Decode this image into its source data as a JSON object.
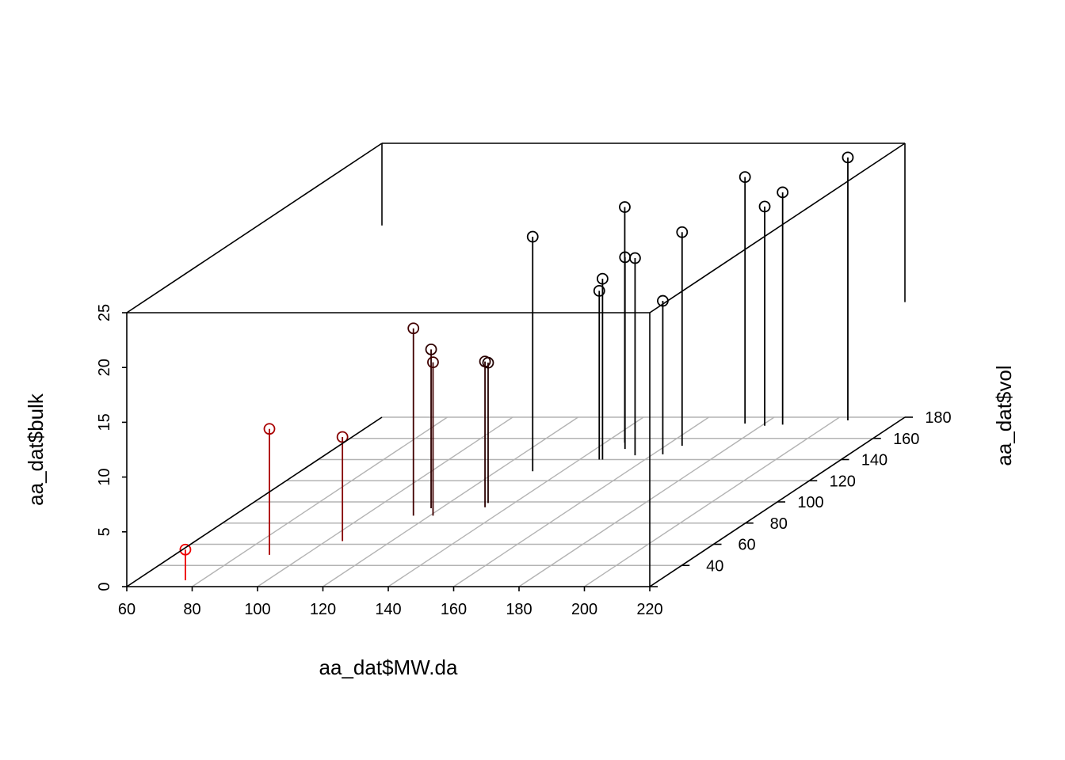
{
  "chart_data": {
    "type": "scatter3d",
    "title": "",
    "xlabel": "aa_dat$MW.da",
    "ylabel": "aa_dat$vol",
    "zlabel": "aa_dat$bulk",
    "xlim": [
      60,
      220
    ],
    "ylim": [
      20,
      180
    ],
    "zlim": [
      0,
      25
    ],
    "x_ticks": [
      "60",
      "80",
      "100",
      "120",
      "140",
      "160",
      "180",
      "200",
      "220"
    ],
    "y_ticks": [
      "40",
      "60",
      "80",
      "100",
      "120",
      "140",
      "160",
      "180"
    ],
    "z_ticks": [
      "0",
      "5",
      "10",
      "15",
      "20",
      "25"
    ],
    "grid": true,
    "point_type": "h",
    "color_high": "#ff0000",
    "color_low": "#000000",
    "points": [
      {
        "x": 75.0,
        "y": 26,
        "z": 2.8
      },
      {
        "x": 89.0,
        "y": 50,
        "z": 11.5
      },
      {
        "x": 105.0,
        "y": 63,
        "z": 9.5
      },
      {
        "x": 115.0,
        "y": 87,
        "z": 17.1
      },
      {
        "x": 117.0,
        "y": 94,
        "z": 14.5
      },
      {
        "x": 121.0,
        "y": 87,
        "z": 14.0
      },
      {
        "x": 131.0,
        "y": 129,
        "z": 21.4
      },
      {
        "x": 132.0,
        "y": 99,
        "z": 12.8
      },
      {
        "x": 133.0,
        "y": 95,
        "z": 13.3
      },
      {
        "x": 146.0,
        "y": 156,
        "z": 21.5
      },
      {
        "x": 146.0,
        "y": 140,
        "z": 15.4
      },
      {
        "x": 147.0,
        "y": 140,
        "z": 16.5
      },
      {
        "x": 149.0,
        "y": 150,
        "z": 17.5
      },
      {
        "x": 155.0,
        "y": 144,
        "z": 18.0
      },
      {
        "x": 165.0,
        "y": 153,
        "z": 19.5
      },
      {
        "x": 174.0,
        "y": 174,
        "z": 22.5
      },
      {
        "x": 181.0,
        "y": 172,
        "z": 20.0
      },
      {
        "x": 186.0,
        "y": 173,
        "z": 21.2
      },
      {
        "x": 204.0,
        "y": 177,
        "z": 24.0
      },
      {
        "x": 163.0,
        "y": 145,
        "z": 14.0
      }
    ]
  }
}
